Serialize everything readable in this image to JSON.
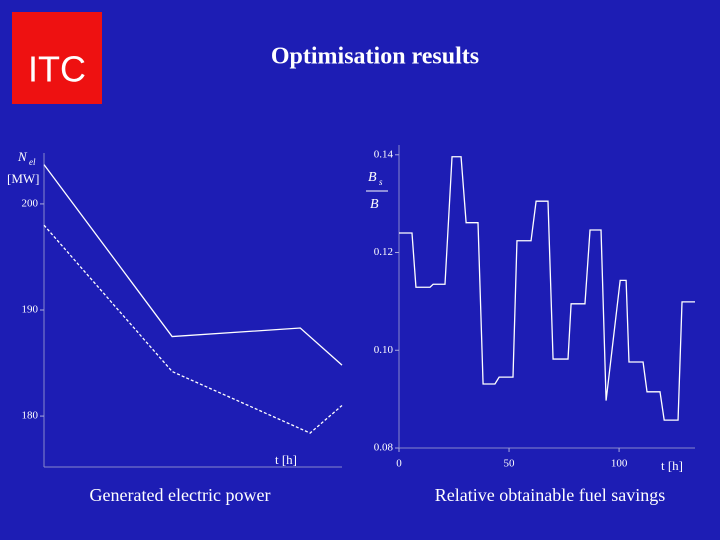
{
  "header": {
    "logo": "ITC",
    "title": "Optimisation results"
  },
  "chart_data": [
    {
      "type": "line",
      "y_label": {
        "symbol": "N",
        "subscript": "el",
        "unit": "[MW]"
      },
      "x_label": "t [h]",
      "caption": "Generated electric power",
      "xlim": [
        0,
        100
      ],
      "ylim": [
        175.2,
        204.8
      ],
      "yticks": [
        180,
        190,
        200
      ],
      "series": [
        {
          "style": "solid",
          "color": "#ffffff",
          "x": [
            0,
            43,
            86,
            100
          ],
          "values": [
            203.7,
            187.5,
            188.3,
            184.8
          ]
        },
        {
          "style": "dashed",
          "color": "#ffffff",
          "x": [
            0,
            43,
            89.3,
            100
          ],
          "values": [
            198.0,
            184.2,
            178.4,
            181.0
          ]
        }
      ]
    },
    {
      "type": "line",
      "y_label": {
        "numerator": "B",
        "subscript": "s",
        "denominator": "B"
      },
      "x_label": "t [h]",
      "caption": "Relative obtainable fuel savings",
      "xlim": [
        0,
        134.5
      ],
      "ylim": [
        0.08,
        0.142
      ],
      "xticks": [
        0,
        50,
        100
      ],
      "yticks": [
        0.14,
        0.12,
        {
          "value": 0.1,
          "label": "0.10"
        },
        0.08
      ],
      "series": [
        {
          "style": "solid",
          "color": "#ffffff",
          "x": [
            0,
            5.9,
            7.7,
            14.1,
            15.5,
            20.9,
            24.1,
            28.2,
            30.5,
            35.9,
            38.2,
            43.6,
            45.5,
            51.8,
            53.6,
            60.0,
            62.3,
            67.7,
            70.0,
            76.8,
            78.2,
            84.5,
            86.8,
            91.8,
            94.1,
            100.5,
            103.2,
            104.5,
            110.9,
            112.7,
            118.6,
            120.5,
            126.8,
            128.6,
            134.5
          ],
          "values": [
            0.124,
            0.124,
            0.1129,
            0.1129,
            0.1135,
            0.1135,
            0.1396,
            0.1396,
            0.1261,
            0.1261,
            0.0931,
            0.0931,
            0.0945,
            0.0945,
            0.1224,
            0.1224,
            0.1305,
            0.1305,
            0.0982,
            0.0982,
            0.1095,
            0.1095,
            0.1246,
            0.1246,
            0.0897,
            0.1143,
            0.1143,
            0.0976,
            0.0976,
            0.0915,
            0.0915,
            0.0857,
            0.0857,
            0.1099,
            0.1099
          ]
        }
      ]
    }
  ]
}
